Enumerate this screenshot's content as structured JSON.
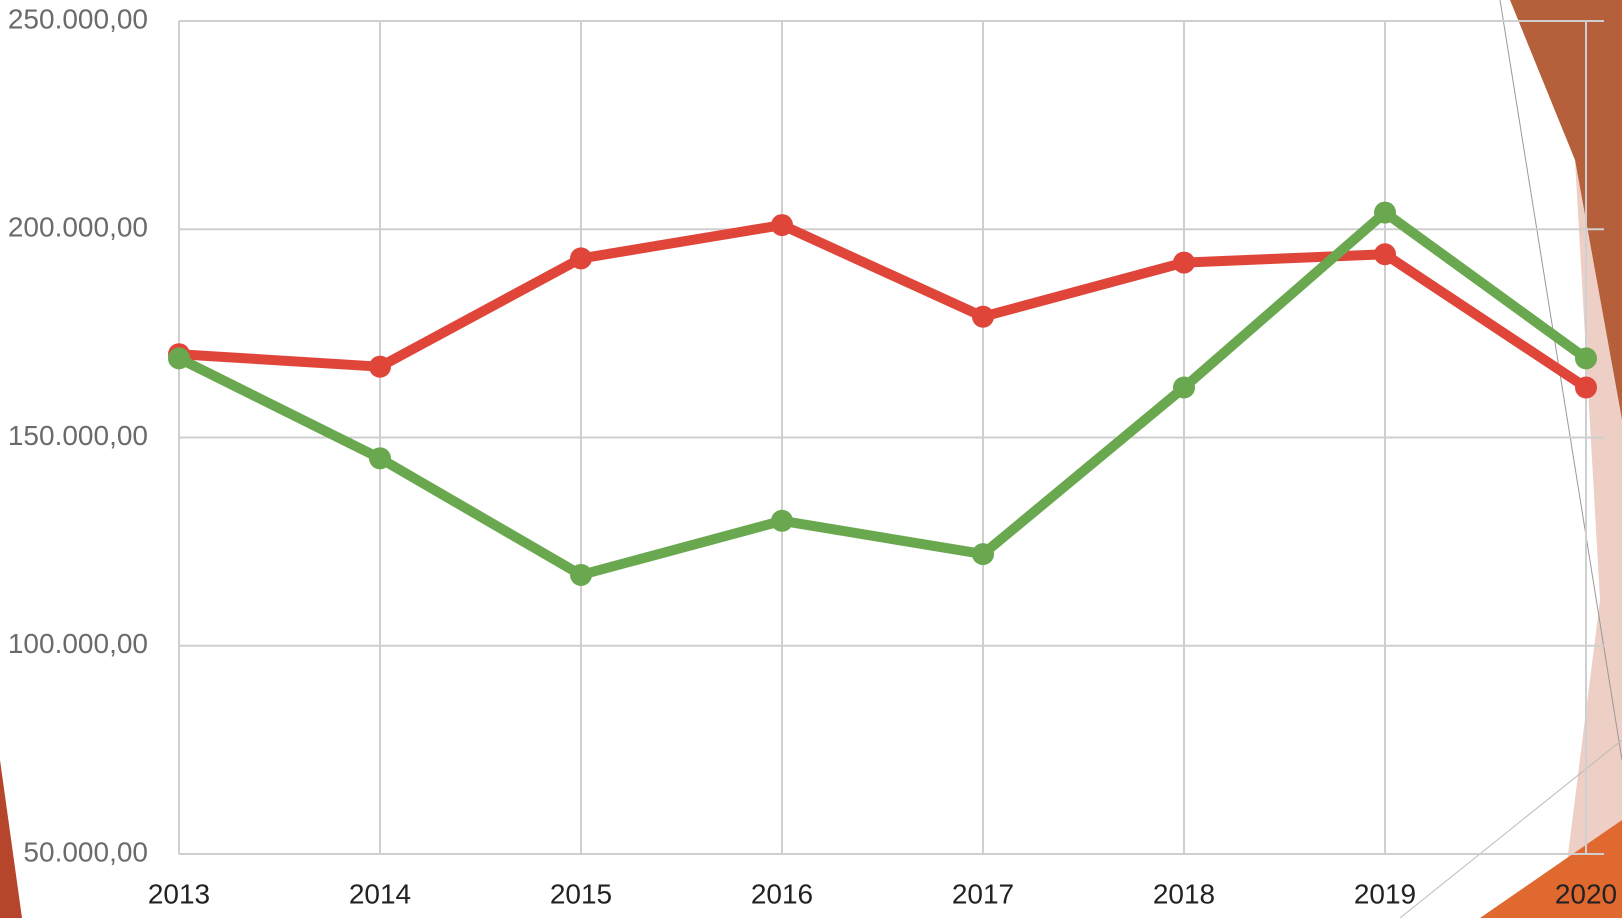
{
  "chart_data": {
    "type": "line",
    "categories": [
      "2013",
      "2014",
      "2015",
      "2016",
      "2017",
      "2018",
      "2019",
      "2020"
    ],
    "series": [
      {
        "color": "#e0453a",
        "values": [
          170000,
          167000,
          193000,
          201000,
          179000,
          192000,
          194000,
          162000
        ]
      },
      {
        "color": "#6aa84f",
        "values": [
          169000,
          145000,
          117000,
          130000,
          122000,
          162000,
          204000,
          169000
        ]
      }
    ],
    "ylim": [
      50000,
      250000
    ],
    "yticks": [
      {
        "value": 50000,
        "label": "50.000,00"
      },
      {
        "value": 100000,
        "label": "100.000,00"
      },
      {
        "value": 150000,
        "label": "150.000,00"
      },
      {
        "value": 200000,
        "label": "200.000,00"
      },
      {
        "value": 250000,
        "label": "250.000,00"
      }
    ],
    "grid": true
  }
}
